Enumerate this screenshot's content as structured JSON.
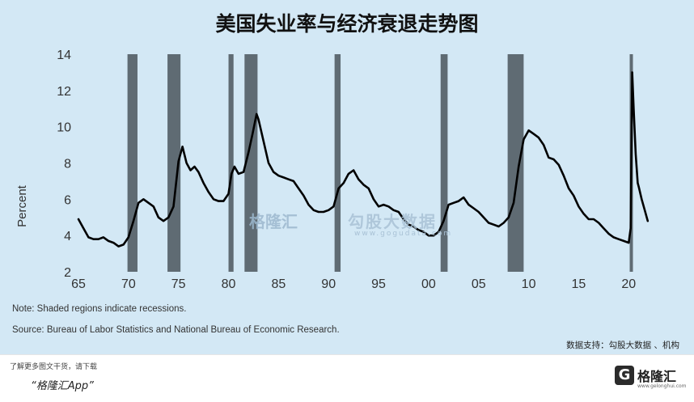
{
  "title": "美国失业率与经济衰退走势图",
  "watermark": {
    "brand": "格隆汇",
    "text": "勾股大数据",
    "url": "www.gogudata.com"
  },
  "notes": {
    "note": "Note: Shaded regions indicate recessions.",
    "source": "Source: Bureau of Labor Statistics and National Bureau of Economic Research."
  },
  "credit": "数据支持：勾股大数据 、机构",
  "footer": {
    "promo": "了解更多图文干货，请下载",
    "app": "“格隆汇App”",
    "brand_text": "格隆汇",
    "brand_icon": "G",
    "brand_url": "www.gelonghui.com"
  },
  "colors": {
    "background": "#d3e8f5",
    "line": "#000000",
    "recession": "#5f6b73"
  },
  "chart_data": {
    "type": "line",
    "ylabel": "Percent",
    "xlabel": "",
    "ylim": [
      2,
      14
    ],
    "xlim": [
      1965,
      2022
    ],
    "yticks": [
      "2",
      "4",
      "6",
      "8",
      "10",
      "12",
      "14"
    ],
    "xticks": [
      {
        "year": 1965,
        "label": "65"
      },
      {
        "year": 1970,
        "label": "70"
      },
      {
        "year": 1975,
        "label": "75"
      },
      {
        "year": 1980,
        "label": "80"
      },
      {
        "year": 1985,
        "label": "85"
      },
      {
        "year": 1990,
        "label": "90"
      },
      {
        "year": 1995,
        "label": "95"
      },
      {
        "year": 2000,
        "label": "00"
      },
      {
        "year": 2005,
        "label": "05"
      },
      {
        "year": 2010,
        "label": "10"
      },
      {
        "year": 2015,
        "label": "15"
      },
      {
        "year": 2020,
        "label": "20"
      }
    ],
    "recessions": [
      [
        1969.9,
        1970.9
      ],
      [
        1973.9,
        1975.2
      ],
      [
        1980.0,
        1980.5
      ],
      [
        1981.6,
        1982.9
      ],
      [
        1990.6,
        1991.2
      ],
      [
        2001.2,
        2001.9
      ],
      [
        2007.9,
        2009.5
      ],
      [
        2020.1,
        2020.4
      ]
    ],
    "series": [
      {
        "x": [
          1965.0,
          1965.5,
          1966.0,
          1966.5,
          1967.0,
          1967.5,
          1968.0,
          1968.5,
          1969.0,
          1969.5,
          1970.0,
          1970.5,
          1971.0,
          1971.5,
          1972.0,
          1972.5,
          1973.0,
          1973.5,
          1974.0,
          1974.5,
          1975.0,
          1975.4,
          1975.8,
          1976.2,
          1976.6,
          1977.0,
          1977.5,
          1978.0,
          1978.5,
          1979.0,
          1979.5,
          1980.0,
          1980.3,
          1980.6,
          1981.0,
          1981.5,
          1982.0,
          1982.4,
          1982.8,
          1983.0,
          1983.5,
          1984.0,
          1984.5,
          1985.0,
          1985.5,
          1986.0,
          1986.5,
          1987.0,
          1987.5,
          1988.0,
          1988.5,
          1989.0,
          1989.5,
          1990.0,
          1990.5,
          1991.0,
          1991.5,
          1992.0,
          1992.5,
          1993.0,
          1993.5,
          1994.0,
          1994.5,
          1995.0,
          1995.5,
          1996.0,
          1996.5,
          1997.0,
          1997.5,
          1998.0,
          1998.5,
          1999.0,
          1999.5,
          2000.0,
          2000.5,
          2001.0,
          2001.5,
          2002.0,
          2002.5,
          2003.0,
          2003.5,
          2004.0,
          2004.5,
          2005.0,
          2005.5,
          2006.0,
          2006.5,
          2007.0,
          2007.5,
          2008.0,
          2008.5,
          2009.0,
          2009.5,
          2010.0,
          2010.5,
          2011.0,
          2011.5,
          2012.0,
          2012.5,
          2013.0,
          2013.5,
          2014.0,
          2014.5,
          2015.0,
          2015.5,
          2016.0,
          2016.5,
          2017.0,
          2017.5,
          2018.0,
          2018.5,
          2019.0,
          2019.5,
          2020.0,
          2020.2,
          2020.35,
          2020.5,
          2020.7,
          2020.9,
          2021.0,
          2021.3,
          2021.6,
          2021.9
        ],
        "values": [
          4.9,
          4.4,
          3.9,
          3.8,
          3.8,
          3.9,
          3.7,
          3.6,
          3.4,
          3.5,
          3.9,
          4.8,
          5.8,
          6.0,
          5.8,
          5.6,
          5.0,
          4.8,
          5.0,
          5.6,
          8.1,
          8.9,
          8.0,
          7.6,
          7.8,
          7.5,
          6.9,
          6.4,
          6.0,
          5.9,
          5.9,
          6.3,
          7.4,
          7.8,
          7.4,
          7.5,
          8.6,
          9.6,
          10.7,
          10.4,
          9.2,
          8.0,
          7.5,
          7.3,
          7.2,
          7.1,
          7.0,
          6.6,
          6.2,
          5.7,
          5.4,
          5.3,
          5.3,
          5.4,
          5.6,
          6.6,
          6.9,
          7.4,
          7.6,
          7.1,
          6.8,
          6.6,
          6.0,
          5.6,
          5.7,
          5.6,
          5.4,
          5.3,
          4.9,
          4.6,
          4.5,
          4.3,
          4.2,
          4.0,
          4.0,
          4.2,
          4.8,
          5.7,
          5.8,
          5.9,
          6.1,
          5.7,
          5.5,
          5.3,
          5.0,
          4.7,
          4.6,
          4.5,
          4.7,
          5.0,
          5.8,
          7.8,
          9.3,
          9.8,
          9.6,
          9.4,
          9.0,
          8.3,
          8.2,
          7.9,
          7.3,
          6.6,
          6.2,
          5.6,
          5.2,
          4.9,
          4.9,
          4.7,
          4.4,
          4.1,
          3.9,
          3.8,
          3.7,
          3.6,
          4.4,
          13.0,
          11.0,
          8.5,
          6.9,
          6.7,
          6.0,
          5.4,
          4.8
        ]
      }
    ]
  }
}
